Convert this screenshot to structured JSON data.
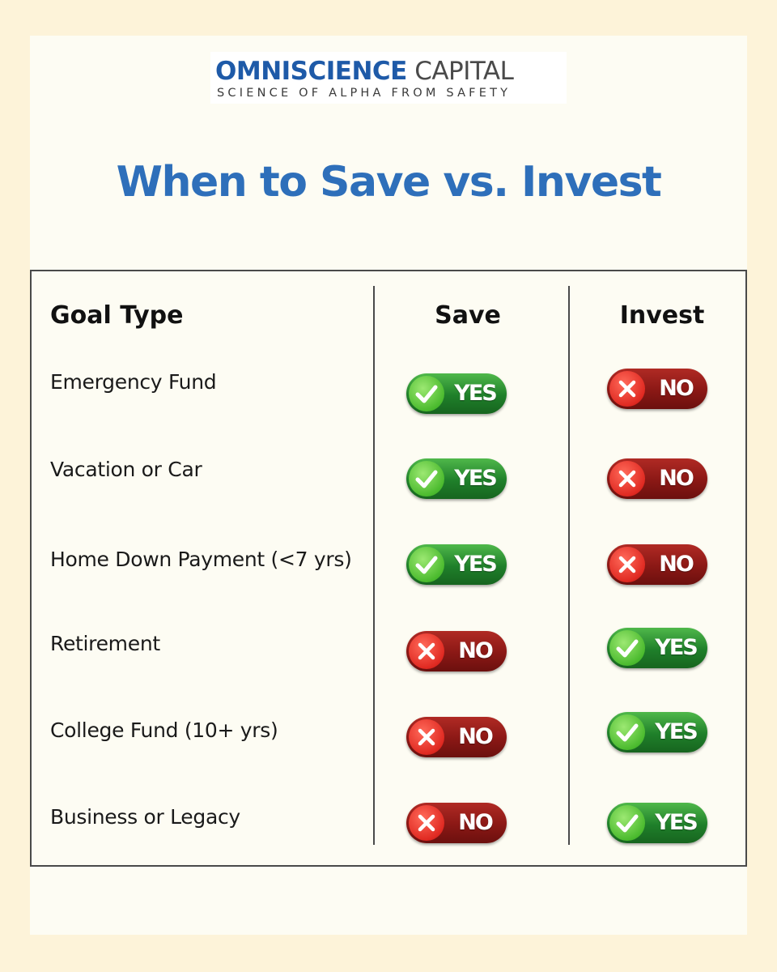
{
  "brand": {
    "name_bold": "OMNISCIENCE",
    "name_regular": "CAPITAL",
    "tagline": "SCIENCE OF ALPHA FROM SAFETY",
    "color_primary": "#1e5aa8"
  },
  "title": "When to Save vs. Invest",
  "table": {
    "headers": {
      "goal": "Goal Type",
      "save": "Save",
      "invest": "Invest"
    },
    "rows": [
      {
        "goal": "Emergency Fund",
        "save": "YES",
        "invest": "NO"
      },
      {
        "goal": "Vacation or Car",
        "save": "YES",
        "invest": "NO"
      },
      {
        "goal": "Home Down Payment (<7 yrs)",
        "save": "YES",
        "invest": "NO"
      },
      {
        "goal": "Retirement",
        "save": "NO",
        "invest": "YES"
      },
      {
        "goal": "College Fund (10+ yrs)",
        "save": "NO",
        "invest": "YES"
      },
      {
        "goal": "Business or Legacy",
        "save": "NO",
        "invest": "YES"
      }
    ]
  },
  "colors": {
    "yes": "#1f7f2a",
    "no": "#8a1815",
    "title": "#2e6fba",
    "background": "#fdf3d9"
  },
  "icons": {
    "yes": "check-icon",
    "no": "x-icon"
  }
}
